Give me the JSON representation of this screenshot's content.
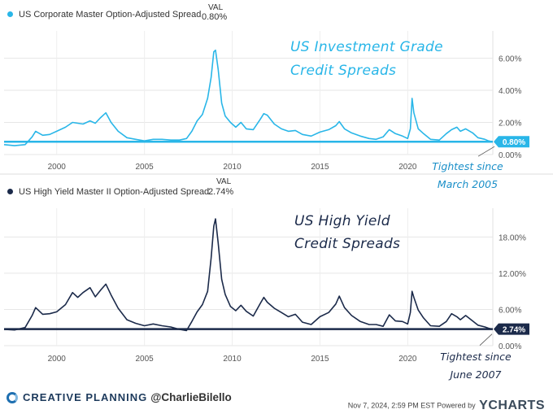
{
  "chart_data": [
    {
      "type": "line",
      "series_name": "US Corporate Master Option-Adjusted Spread",
      "val_header": "VAL",
      "current_value_label": "0.80%",
      "current_value": 0.8,
      "color": "#29b6e8",
      "annotation_title_line1": "US Investment Grade",
      "annotation_title_line2": "Credit Spreads",
      "note_line1": "Tightest since",
      "note_line2": "March 2005",
      "x_range": [
        1997.0,
        2024.85
      ],
      "ylim": [
        0,
        7.6
      ],
      "y_ticks": [
        0,
        2,
        4,
        6
      ],
      "y_tick_labels": [
        "0.00%",
        "2.00%",
        "4.00%",
        "6.00%"
      ],
      "x_ticks": [
        2000,
        2005,
        2010,
        2015,
        2020
      ],
      "x_tick_labels": [
        "2000",
        "2005",
        "2010",
        "2015",
        "2020"
      ],
      "points": [
        [
          1997.0,
          0.62
        ],
        [
          1997.6,
          0.55
        ],
        [
          1998.2,
          0.62
        ],
        [
          1998.6,
          1.1
        ],
        [
          1998.8,
          1.45
        ],
        [
          1999.2,
          1.2
        ],
        [
          1999.6,
          1.25
        ],
        [
          2000.0,
          1.45
        ],
        [
          2000.5,
          1.7
        ],
        [
          2000.9,
          2.0
        ],
        [
          2001.2,
          1.95
        ],
        [
          2001.5,
          1.9
        ],
        [
          2001.9,
          2.1
        ],
        [
          2002.2,
          1.95
        ],
        [
          2002.5,
          2.3
        ],
        [
          2002.8,
          2.6
        ],
        [
          2003.1,
          2.0
        ],
        [
          2003.5,
          1.45
        ],
        [
          2004.0,
          1.05
        ],
        [
          2004.5,
          0.95
        ],
        [
          2005.0,
          0.85
        ],
        [
          2005.5,
          0.95
        ],
        [
          2006.0,
          0.95
        ],
        [
          2006.5,
          0.9
        ],
        [
          2007.0,
          0.9
        ],
        [
          2007.4,
          1.0
        ],
        [
          2007.7,
          1.45
        ],
        [
          2008.0,
          2.1
        ],
        [
          2008.3,
          2.5
        ],
        [
          2008.6,
          3.5
        ],
        [
          2008.8,
          4.8
        ],
        [
          2008.95,
          6.4
        ],
        [
          2009.05,
          6.5
        ],
        [
          2009.2,
          5.3
        ],
        [
          2009.4,
          3.2
        ],
        [
          2009.6,
          2.4
        ],
        [
          2009.9,
          2.0
        ],
        [
          2010.2,
          1.7
        ],
        [
          2010.5,
          2.0
        ],
        [
          2010.8,
          1.6
        ],
        [
          2011.2,
          1.55
        ],
        [
          2011.6,
          2.2
        ],
        [
          2011.8,
          2.55
        ],
        [
          2012.0,
          2.45
        ],
        [
          2012.4,
          1.9
        ],
        [
          2012.8,
          1.6
        ],
        [
          2013.2,
          1.45
        ],
        [
          2013.6,
          1.5
        ],
        [
          2014.0,
          1.25
        ],
        [
          2014.5,
          1.15
        ],
        [
          2015.0,
          1.4
        ],
        [
          2015.5,
          1.55
        ],
        [
          2015.9,
          1.8
        ],
        [
          2016.1,
          2.05
        ],
        [
          2016.4,
          1.6
        ],
        [
          2016.8,
          1.35
        ],
        [
          2017.3,
          1.15
        ],
        [
          2017.8,
          1.0
        ],
        [
          2018.2,
          0.95
        ],
        [
          2018.6,
          1.1
        ],
        [
          2018.95,
          1.55
        ],
        [
          2019.3,
          1.3
        ],
        [
          2019.7,
          1.15
        ],
        [
          2020.0,
          1.0
        ],
        [
          2020.15,
          1.6
        ],
        [
          2020.25,
          3.5
        ],
        [
          2020.35,
          2.6
        ],
        [
          2020.6,
          1.6
        ],
        [
          2020.9,
          1.3
        ],
        [
          2021.3,
          0.95
        ],
        [
          2021.8,
          0.9
        ],
        [
          2022.2,
          1.3
        ],
        [
          2022.5,
          1.55
        ],
        [
          2022.8,
          1.7
        ],
        [
          2023.0,
          1.45
        ],
        [
          2023.3,
          1.6
        ],
        [
          2023.7,
          1.35
        ],
        [
          2024.0,
          1.05
        ],
        [
          2024.4,
          0.95
        ],
        [
          2024.6,
          0.85
        ],
        [
          2024.8,
          0.8
        ]
      ]
    },
    {
      "type": "line",
      "series_name": "US High Yield Master II Option-Adjusted Spread",
      "val_header": "VAL",
      "current_value_label": "2.74%",
      "current_value": 2.74,
      "color": "#1b2a4a",
      "annotation_title_line1": "US High Yield",
      "annotation_title_line2": "Credit Spreads",
      "note_line1": "Tightest since",
      "note_line2": "June 2007",
      "x_range": [
        1997.0,
        2024.85
      ],
      "ylim": [
        0,
        22.5
      ],
      "y_ticks": [
        0,
        6,
        12,
        18
      ],
      "y_tick_labels": [
        "0.00%",
        "6.00%",
        "12.00%",
        "18.00%"
      ],
      "x_ticks": [
        2000,
        2005,
        2010,
        2015,
        2020
      ],
      "x_tick_labels": [
        "2000",
        "2005",
        "2010",
        "2015",
        "2020"
      ],
      "points": [
        [
          1997.0,
          2.7
        ],
        [
          1997.6,
          2.6
        ],
        [
          1998.2,
          3.0
        ],
        [
          1998.6,
          5.0
        ],
        [
          1998.8,
          6.3
        ],
        [
          1999.2,
          5.2
        ],
        [
          1999.6,
          5.3
        ],
        [
          2000.0,
          5.6
        ],
        [
          2000.5,
          6.8
        ],
        [
          2000.9,
          8.8
        ],
        [
          2001.2,
          8.0
        ],
        [
          2001.5,
          8.8
        ],
        [
          2001.9,
          9.6
        ],
        [
          2002.2,
          8.1
        ],
        [
          2002.5,
          9.2
        ],
        [
          2002.8,
          10.2
        ],
        [
          2003.1,
          8.4
        ],
        [
          2003.5,
          6.2
        ],
        [
          2004.0,
          4.3
        ],
        [
          2004.5,
          3.7
        ],
        [
          2005.0,
          3.3
        ],
        [
          2005.5,
          3.6
        ],
        [
          2006.0,
          3.3
        ],
        [
          2006.5,
          3.1
        ],
        [
          2007.0,
          2.7
        ],
        [
          2007.4,
          2.5
        ],
        [
          2007.7,
          4.0
        ],
        [
          2008.0,
          5.6
        ],
        [
          2008.3,
          6.8
        ],
        [
          2008.6,
          9.0
        ],
        [
          2008.8,
          14.5
        ],
        [
          2008.95,
          19.8
        ],
        [
          2009.05,
          21.0
        ],
        [
          2009.2,
          17.0
        ],
        [
          2009.4,
          11.0
        ],
        [
          2009.6,
          8.5
        ],
        [
          2009.9,
          6.5
        ],
        [
          2010.2,
          5.8
        ],
        [
          2010.5,
          6.7
        ],
        [
          2010.8,
          5.7
        ],
        [
          2011.2,
          4.9
        ],
        [
          2011.6,
          7.0
        ],
        [
          2011.8,
          8.0
        ],
        [
          2012.0,
          7.2
        ],
        [
          2012.4,
          6.2
        ],
        [
          2012.8,
          5.5
        ],
        [
          2013.2,
          4.8
        ],
        [
          2013.6,
          5.2
        ],
        [
          2014.0,
          3.9
        ],
        [
          2014.5,
          3.5
        ],
        [
          2015.0,
          4.8
        ],
        [
          2015.5,
          5.5
        ],
        [
          2015.9,
          6.9
        ],
        [
          2016.1,
          8.2
        ],
        [
          2016.4,
          6.3
        ],
        [
          2016.8,
          5.0
        ],
        [
          2017.3,
          4.0
        ],
        [
          2017.8,
          3.5
        ],
        [
          2018.2,
          3.5
        ],
        [
          2018.6,
          3.2
        ],
        [
          2018.95,
          5.1
        ],
        [
          2019.3,
          4.1
        ],
        [
          2019.7,
          4.0
        ],
        [
          2020.0,
          3.6
        ],
        [
          2020.15,
          5.5
        ],
        [
          2020.25,
          9.0
        ],
        [
          2020.35,
          8.0
        ],
        [
          2020.6,
          5.9
        ],
        [
          2020.9,
          4.6
        ],
        [
          2021.3,
          3.3
        ],
        [
          2021.8,
          3.2
        ],
        [
          2022.2,
          4.0
        ],
        [
          2022.5,
          5.3
        ],
        [
          2022.8,
          4.8
        ],
        [
          2023.0,
          4.3
        ],
        [
          2023.3,
          5.0
        ],
        [
          2023.7,
          4.1
        ],
        [
          2024.0,
          3.4
        ],
        [
          2024.4,
          3.1
        ],
        [
          2024.6,
          2.9
        ],
        [
          2024.8,
          2.74
        ]
      ]
    }
  ],
  "footer": {
    "brand": "CREATIVE PLANNING",
    "handle": "@CharlieBilello",
    "timestamp": "Nov 7, 2024, 2:59 PM EST Powered by",
    "powered_logo": "YCHARTS"
  }
}
